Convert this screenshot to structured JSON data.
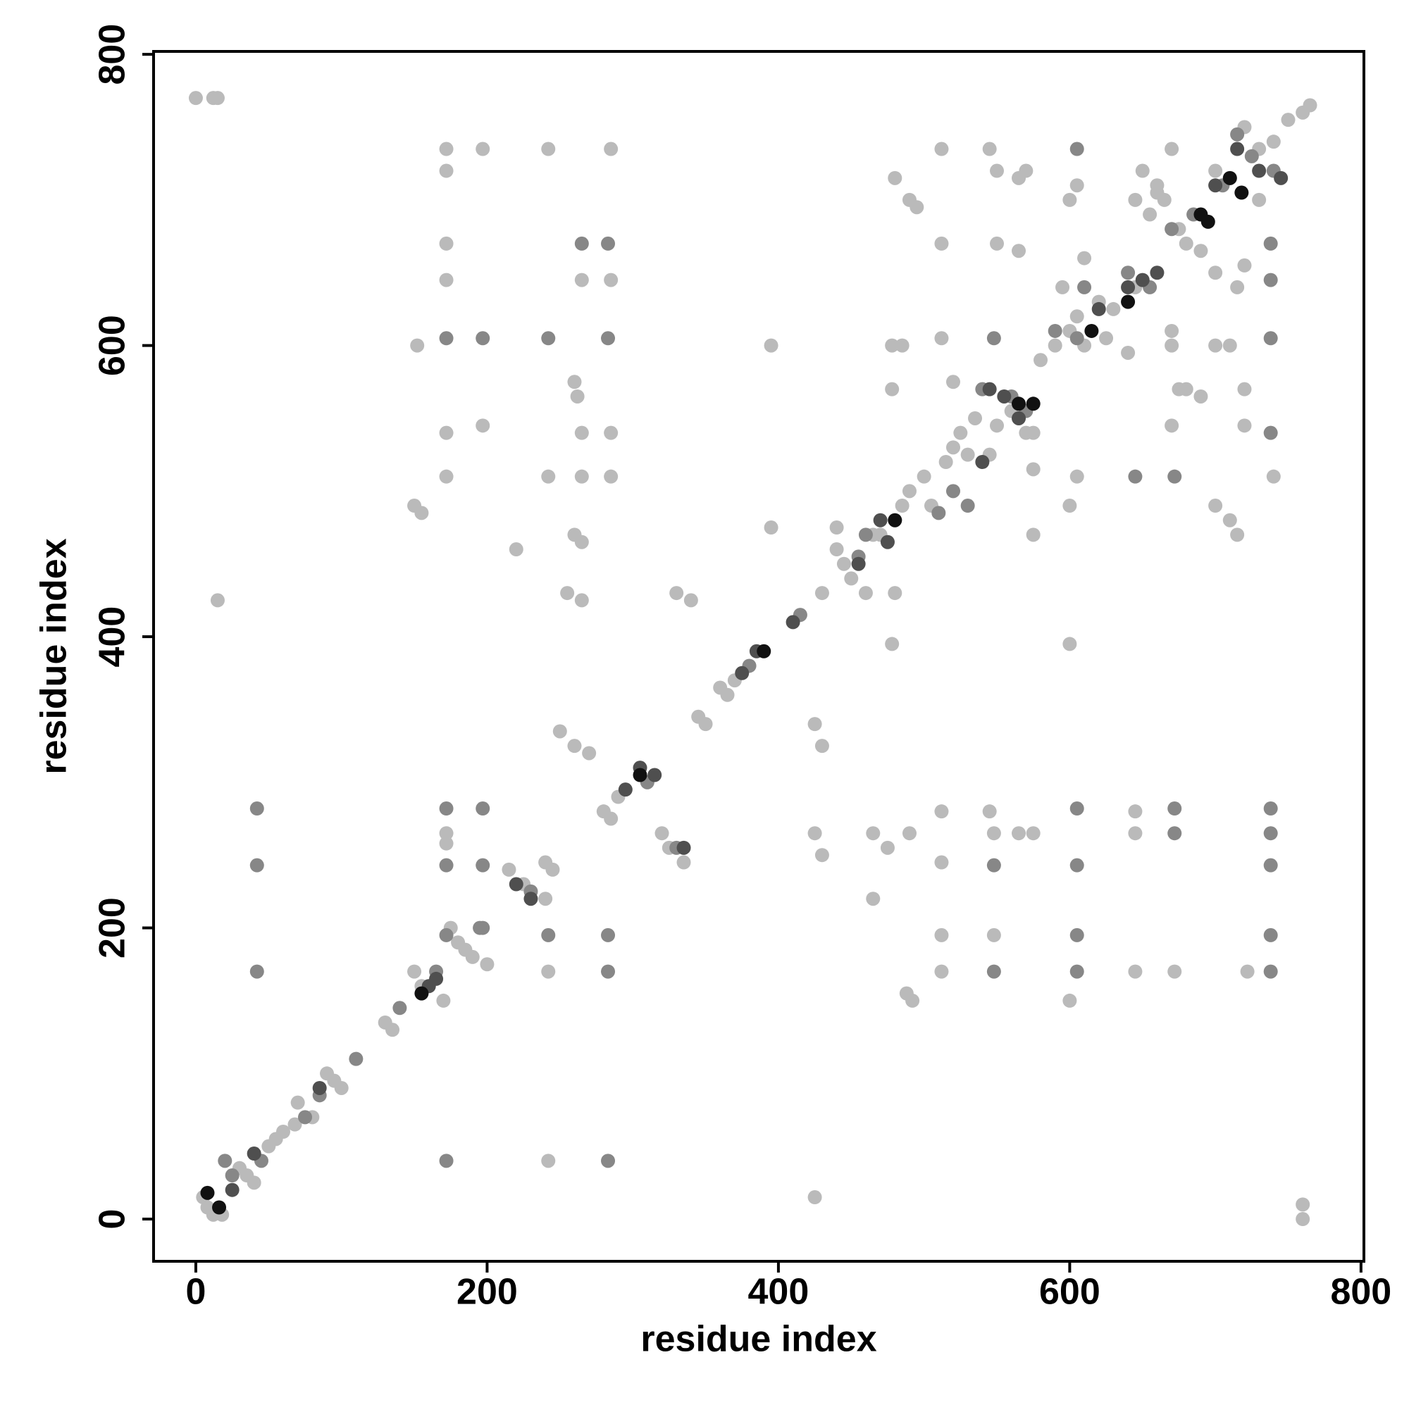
{
  "chart_data": {
    "type": "scatter",
    "xlabel": "residue index",
    "ylabel": "residue index",
    "xlim": [
      -29,
      802
    ],
    "ylim": [
      -29,
      802
    ],
    "xticks": [
      0,
      200,
      400,
      600,
      800
    ],
    "yticks": [
      0,
      200,
      400,
      600,
      800
    ],
    "series": [
      {
        "color": "#bababa",
        "x": [
          0,
          12,
          15,
          15,
          5,
          8,
          12,
          18,
          30,
          35,
          40,
          50,
          55,
          60,
          68,
          70,
          80,
          90,
          95,
          100,
          130,
          135,
          150,
          155,
          170,
          175,
          180,
          185,
          190,
          200,
          215,
          225,
          240,
          240,
          245,
          280,
          285,
          290,
          345,
          350,
          360,
          365,
          370,
          430,
          440,
          445,
          450,
          460,
          470,
          480,
          485,
          490,
          500,
          505,
          515,
          520,
          525,
          530,
          535,
          545,
          550,
          560,
          570,
          575,
          580,
          590,
          595,
          600,
          605,
          610,
          620,
          625,
          630,
          640,
          645,
          655,
          660,
          665,
          675,
          680,
          700,
          710,
          720,
          730,
          740,
          750,
          760,
          765,
          172,
          172,
          172,
          172,
          172,
          172,
          172,
          172,
          197,
          197,
          242,
          242,
          242,
          242,
          260,
          262,
          265,
          265,
          265,
          285,
          285,
          285,
          285,
          152,
          150,
          155,
          255,
          265,
          260,
          265,
          250,
          260,
          270,
          320,
          325,
          335,
          330,
          340,
          220,
          395,
          395,
          425,
          425,
          430,
          425,
          430,
          440,
          465,
          465,
          475,
          480,
          478,
          478,
          478,
          480,
          490,
          495,
          485,
          488,
          492,
          512,
          512,
          512,
          512,
          512,
          520,
          545,
          550,
          550,
          565,
          565,
          570,
          575,
          575,
          565,
          575,
          548,
          548,
          545,
          600,
          600,
          600,
          605,
          600,
          610,
          605,
          645,
          650,
          660,
          670,
          670,
          670,
          675,
          670,
          680,
          690,
          700,
          710,
          700,
          710,
          715,
          720,
          720,
          715,
          720,
          690,
          700,
          730,
          740,
          760,
          760,
          645,
          672,
          722,
          645,
          645,
          512,
          512,
          490,
          465
        ],
        "y": [
          770,
          770,
          770,
          425,
          15,
          8,
          3,
          3,
          35,
          30,
          25,
          50,
          55,
          60,
          65,
          80,
          70,
          100,
          95,
          90,
          135,
          130,
          170,
          160,
          150,
          200,
          190,
          185,
          180,
          175,
          240,
          230,
          220,
          245,
          240,
          280,
          275,
          290,
          345,
          340,
          365,
          360,
          370,
          430,
          460,
          450,
          440,
          430,
          470,
          480,
          490,
          500,
          510,
          490,
          520,
          530,
          540,
          525,
          550,
          525,
          545,
          555,
          540,
          515,
          590,
          600,
          640,
          610,
          620,
          600,
          630,
          605,
          625,
          595,
          640,
          690,
          710,
          700,
          680,
          670,
          720,
          715,
          750,
          735,
          740,
          755,
          760,
          765,
          735,
          720,
          670,
          645,
          540,
          510,
          265,
          258,
          735,
          545,
          735,
          510,
          40,
          170,
          575,
          565,
          510,
          540,
          645,
          735,
          645,
          540,
          510,
          600,
          490,
          485,
          430,
          425,
          470,
          465,
          335,
          325,
          320,
          265,
          255,
          245,
          430,
          425,
          460,
          600,
          475,
          15,
          340,
          325,
          265,
          250,
          475,
          220,
          265,
          255,
          430,
          395,
          570,
          600,
          715,
          700,
          695,
          600,
          155,
          150,
          735,
          670,
          605,
          280,
          245,
          575,
          735,
          720,
          670,
          715,
          665,
          720,
          470,
          540,
          265,
          265,
          195,
          265,
          280,
          395,
          150,
          490,
          710,
          700,
          660,
          510,
          700,
          720,
          705,
          735,
          610,
          600,
          570,
          545,
          570,
          565,
          600,
          600,
          490,
          480,
          470,
          545,
          570,
          640,
          655,
          665,
          650,
          700,
          510,
          10,
          0,
          170,
          170,
          170,
          280,
          265,
          195,
          170,
          265,
          470
        ]
      },
      {
        "color": "#878787",
        "x": [
          172,
          172,
          172,
          197,
          197,
          197,
          283,
          283,
          283,
          172,
          42,
          42,
          42,
          242,
          265,
          283,
          283,
          242,
          197,
          172,
          548,
          548,
          548,
          605,
          605,
          605,
          605,
          605,
          605,
          672,
          672,
          738,
          738,
          738,
          738,
          738,
          738,
          738,
          738,
          738,
          645,
          672,
          20,
          25,
          45,
          75,
          85,
          110,
          140,
          165,
          195,
          230,
          310,
          330,
          380,
          415,
          455,
          460,
          510,
          520,
          530,
          540,
          560,
          570,
          590,
          610,
          640,
          655,
          670,
          685,
          705,
          715,
          725,
          740
        ],
        "y": [
          282,
          243,
          195,
          282,
          243,
          200,
          195,
          170,
          40,
          40,
          282,
          243,
          170,
          195,
          670,
          670,
          605,
          605,
          605,
          605,
          605,
          243,
          170,
          282,
          243,
          195,
          170,
          735,
          605,
          282,
          265,
          282,
          265,
          243,
          195,
          170,
          605,
          670,
          645,
          540,
          510,
          510,
          40,
          30,
          40,
          70,
          85,
          110,
          145,
          170,
          200,
          225,
          300,
          255,
          380,
          415,
          455,
          470,
          485,
          500,
          490,
          570,
          565,
          555,
          610,
          640,
          650,
          640,
          680,
          690,
          710,
          745,
          730,
          720
        ]
      },
      {
        "color": "#4f4f4f",
        "x": [
          25,
          40,
          85,
          160,
          165,
          220,
          230,
          295,
          305,
          315,
          335,
          375,
          385,
          410,
          455,
          470,
          475,
          540,
          545,
          555,
          565,
          620,
          640,
          650,
          660,
          700,
          715,
          730,
          745
        ],
        "y": [
          20,
          45,
          90,
          160,
          165,
          230,
          220,
          295,
          310,
          305,
          255,
          375,
          390,
          410,
          450,
          480,
          465,
          520,
          570,
          565,
          550,
          625,
          640,
          645,
          650,
          710,
          735,
          720,
          715
        ]
      },
      {
        "color": "#111111",
        "x": [
          8,
          16,
          155,
          305,
          390,
          480,
          565,
          575,
          615,
          640,
          690,
          695,
          710,
          718
        ],
        "y": [
          18,
          8,
          155,
          305,
          390,
          480,
          560,
          560,
          610,
          630,
          690,
          685,
          715,
          705
        ]
      }
    ]
  }
}
